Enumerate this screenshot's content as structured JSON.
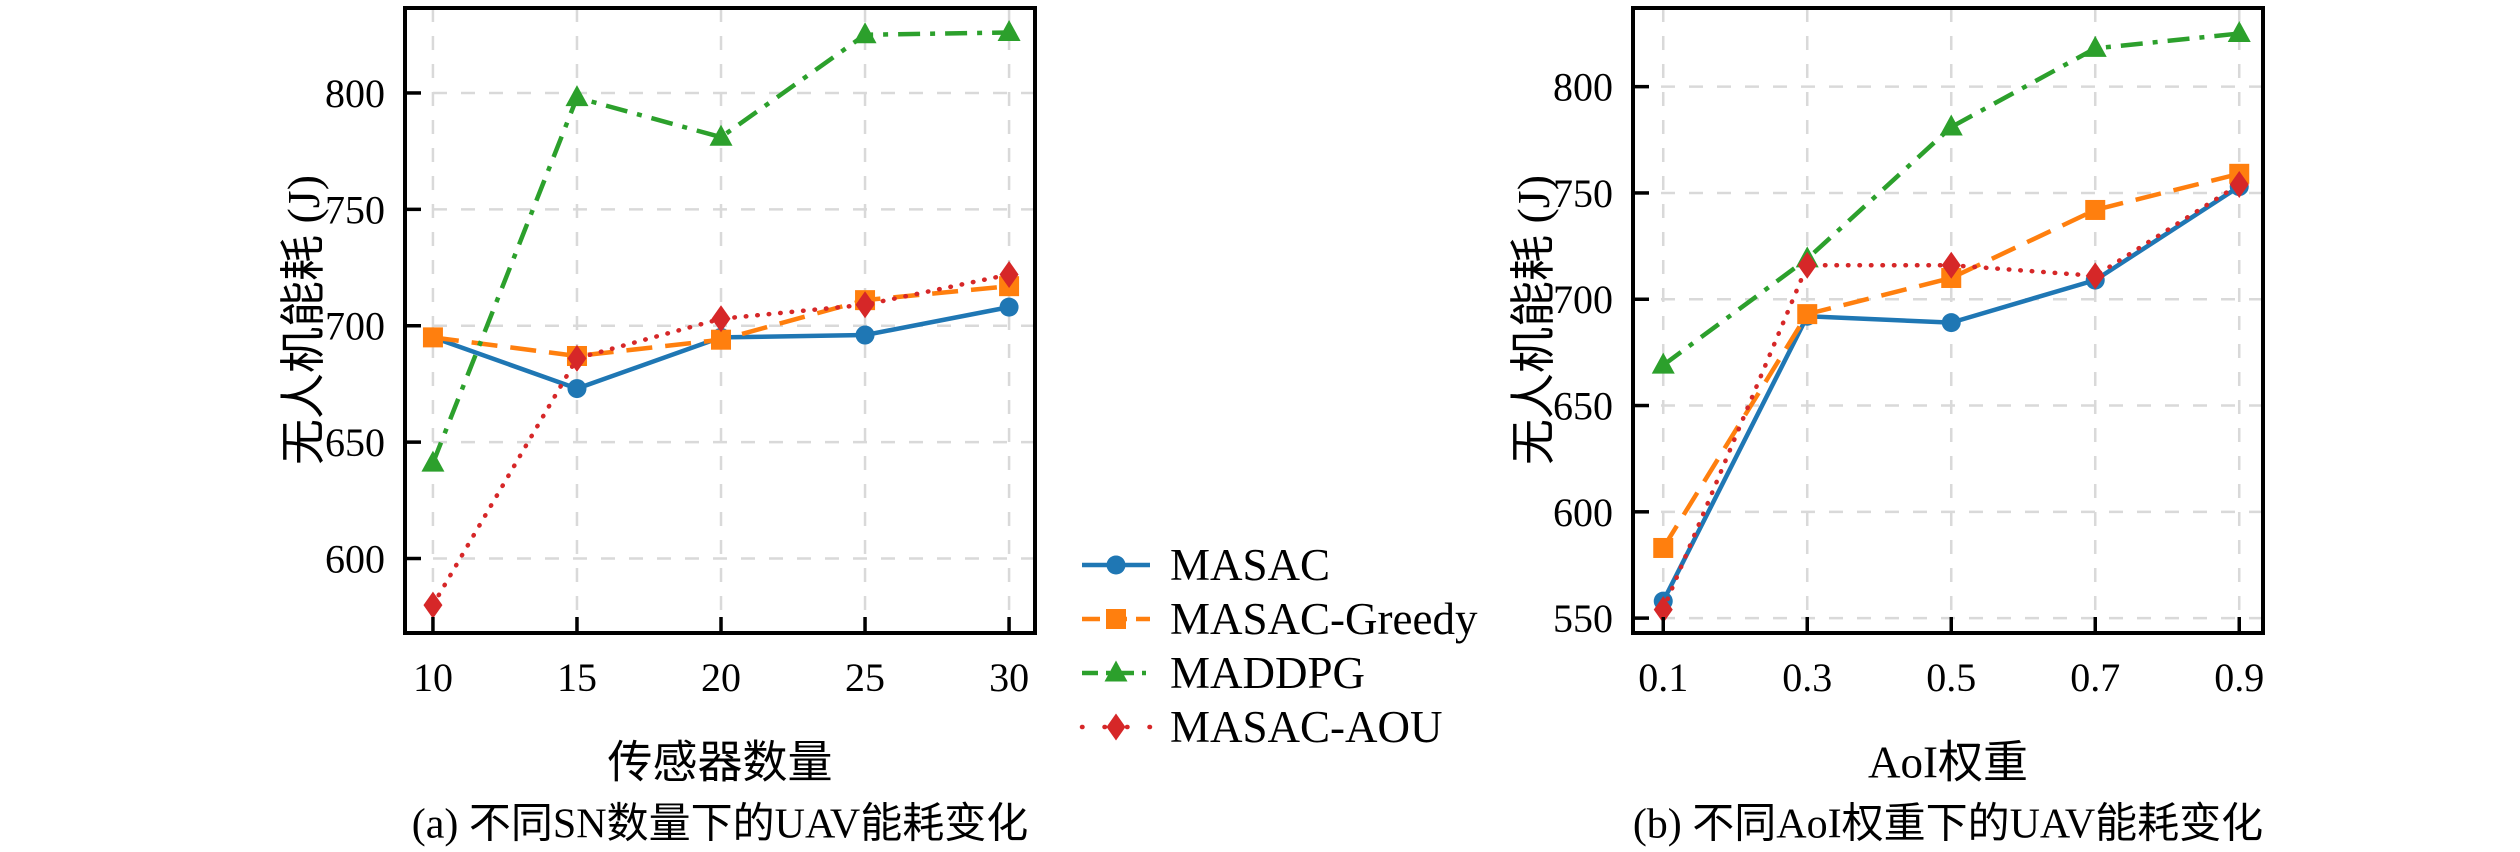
{
  "page": {
    "background": "#ffffff",
    "grid_color": "#d9d9d9",
    "axis_color": "#000000"
  },
  "legend": {
    "position": "center-between-charts",
    "items": [
      {
        "label": "MASAC",
        "series_index": 0
      },
      {
        "label": "MASAC-Greedy",
        "series_index": 1
      },
      {
        "label": "MADDPG",
        "series_index": 2
      },
      {
        "label": "MASAC-AOU",
        "series_index": 3
      }
    ]
  },
  "chart_data": [
    {
      "id": "a",
      "type": "line",
      "caption": "(a) 不同SN数量下的UAV能耗变化",
      "xlabel": "传感器数量",
      "ylabel": "无人机能耗 (J)",
      "grid": true,
      "x": [
        10,
        15,
        20,
        25,
        30
      ],
      "xtick_labels": [
        "10",
        "15",
        "20",
        "25",
        "30"
      ],
      "yticks": [
        600,
        650,
        700,
        750,
        800
      ],
      "xlim": [
        9.03,
        30.9
      ],
      "ylim": [
        568,
        836.5
      ],
      "series": [
        {
          "name": "MASAC",
          "color": "#1f77b4",
          "line": "solid",
          "marker": "circle",
          "values": [
            695,
            673,
            695,
            696,
            708
          ]
        },
        {
          "name": "MASAC-Greedy",
          "color": "#ff7f0e",
          "line": "dashed",
          "marker": "square",
          "values": [
            695,
            687,
            694,
            711,
            717
          ]
        },
        {
          "name": "MADDPG",
          "color": "#2ca02c",
          "line": "dashdot",
          "marker": "triangle",
          "values": [
            641,
            798,
            781,
            825,
            826
          ]
        },
        {
          "name": "MASAC-AOU",
          "color": "#d62728",
          "line": "dotted",
          "marker": "diamond",
          "values": [
            580,
            686,
            703,
            709,
            722
          ]
        }
      ]
    },
    {
      "id": "b",
      "type": "line",
      "caption": "(b) 不同AoI权重下的UAV能耗变化",
      "xlabel": "AoI权重",
      "ylabel": "无人机能耗 (J)",
      "grid": true,
      "x": [
        0.1,
        0.3,
        0.5,
        0.7,
        0.9
      ],
      "xtick_labels": [
        "0.1",
        "0.3",
        "0.5",
        "0.7",
        "0.9"
      ],
      "yticks": [
        550,
        600,
        650,
        700,
        750,
        800
      ],
      "xlim": [
        0.058,
        0.933
      ],
      "ylim": [
        543,
        837
      ],
      "series": [
        {
          "name": "MASAC",
          "color": "#1f77b4",
          "line": "solid",
          "marker": "circle",
          "values": [
            558,
            692,
            689,
            709,
            753
          ]
        },
        {
          "name": "MASAC-Greedy",
          "color": "#ff7f0e",
          "line": "dashed",
          "marker": "square",
          "values": [
            583,
            693,
            710,
            742,
            759
          ]
        },
        {
          "name": "MADDPG",
          "color": "#2ca02c",
          "line": "dashdot",
          "marker": "triangle",
          "values": [
            669,
            719,
            781,
            818,
            825
          ]
        },
        {
          "name": "MASAC-AOU",
          "color": "#d62728",
          "line": "dotted",
          "marker": "diamond",
          "values": [
            554,
            716,
            716,
            711,
            754
          ]
        }
      ]
    }
  ]
}
